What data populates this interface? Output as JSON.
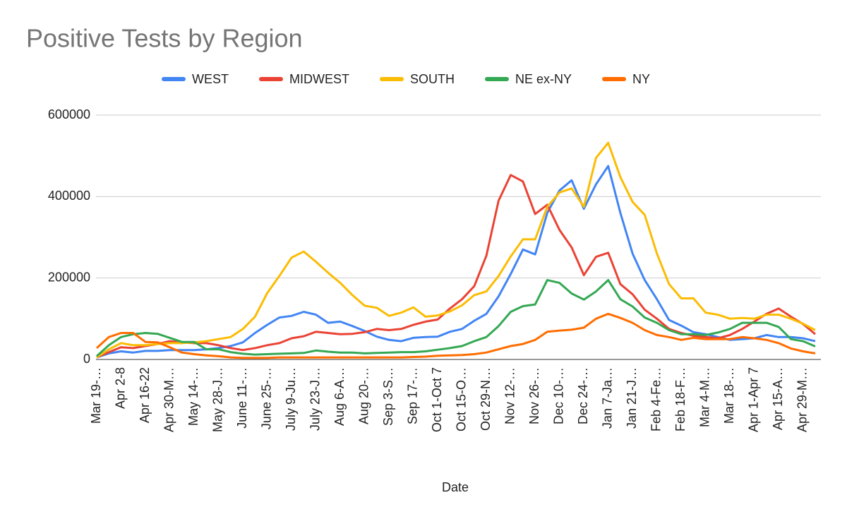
{
  "chart_data": {
    "type": "line",
    "title": "Positive Tests by Region",
    "x_label": "Date",
    "categories": [
      "Mar 19-…",
      null,
      "Apr 2-8",
      null,
      "Apr 16-22",
      null,
      "Apr 30-M…",
      null,
      "May 14-…",
      null,
      "May 28-J…",
      null,
      "June 11-…",
      null,
      "June 25-…",
      null,
      "July 9-Ju…",
      null,
      "July 23-J…",
      null,
      "Aug 6-A…",
      null,
      "Aug 20-…",
      null,
      "Sep 3-S…",
      null,
      "Sep 17-…",
      null,
      "Oct 1-Oct 7",
      null,
      "Oct 15-O…",
      null,
      "Oct 29-N…",
      null,
      "Nov 12-…",
      null,
      "Nov 26-…",
      null,
      "Dec 10-…",
      null,
      "Dec 24-…",
      null,
      "Jan 7-Ja…",
      null,
      "Jan 21-J…",
      null,
      "Feb 4-Fe…",
      null,
      "Feb 18-F…",
      null,
      "Mar 4-M…",
      null,
      "Mar 18-…",
      null,
      "Apr 1-Apr 7",
      null,
      "Apr 15-A…",
      null,
      "Apr 29-M…",
      null
    ],
    "series": [
      {
        "name": "WEST",
        "color": "#4285f4",
        "values": [
          5000,
          15000,
          20000,
          17000,
          21000,
          21000,
          23000,
          23000,
          23000,
          25000,
          28000,
          33000,
          42000,
          65000,
          85000,
          103000,
          107000,
          117000,
          110000,
          90000,
          93000,
          82000,
          70000,
          56000,
          48000,
          45000,
          53000,
          55000,
          56000,
          68000,
          75000,
          95000,
          112000,
          155000,
          210000,
          270000,
          258000,
          360000,
          415000,
          440000,
          370000,
          430000,
          475000,
          360000,
          260000,
          195000,
          148000,
          97000,
          83000,
          67000,
          62000,
          55000,
          48000,
          50000,
          52000,
          60000,
          55000,
          55000,
          52000,
          45000
        ]
      },
      {
        "name": "MIDWEST",
        "color": "#ea4335",
        "values": [
          5000,
          18000,
          30000,
          28000,
          33000,
          38000,
          45000,
          42000,
          40000,
          40000,
          35000,
          28000,
          23000,
          28000,
          35000,
          40000,
          52000,
          57000,
          68000,
          65000,
          62000,
          63000,
          67000,
          75000,
          72000,
          75000,
          85000,
          93000,
          98000,
          125000,
          148000,
          180000,
          255000,
          390000,
          453000,
          437000,
          357000,
          380000,
          318000,
          275000,
          207000,
          252000,
          262000,
          185000,
          160000,
          122000,
          100000,
          75000,
          65000,
          58000,
          55000,
          52000,
          60000,
          75000,
          93000,
          112000,
          125000,
          105000,
          87000,
          62000
        ]
      },
      {
        "name": "SOUTH",
        "color": "#fbbc04",
        "values": [
          5000,
          25000,
          40000,
          35000,
          35000,
          38000,
          40000,
          40000,
          42000,
          45000,
          50000,
          55000,
          75000,
          105000,
          163000,
          205000,
          250000,
          265000,
          240000,
          213000,
          188000,
          158000,
          132000,
          127000,
          107000,
          115000,
          128000,
          105000,
          108000,
          118000,
          133000,
          158000,
          167000,
          205000,
          253000,
          295000,
          295000,
          375000,
          410000,
          420000,
          375000,
          495000,
          532000,
          448000,
          387000,
          355000,
          260000,
          185000,
          150000,
          150000,
          115000,
          110000,
          100000,
          102000,
          100000,
          110000,
          110000,
          100000,
          88000,
          72000
        ]
      },
      {
        "name": "NE ex-NY",
        "color": "#34a853",
        "values": [
          8000,
          35000,
          55000,
          62000,
          65000,
          63000,
          53000,
          43000,
          43000,
          25000,
          25000,
          18000,
          14000,
          12000,
          13000,
          14000,
          15000,
          16000,
          22000,
          19000,
          17000,
          17000,
          15000,
          16000,
          17000,
          18000,
          18000,
          20000,
          24000,
          28000,
          33000,
          45000,
          55000,
          82000,
          117000,
          131000,
          135000,
          195000,
          188000,
          162000,
          147000,
          167000,
          195000,
          148000,
          130000,
          103000,
          90000,
          72000,
          62000,
          62000,
          60000,
          66000,
          75000,
          90000,
          90000,
          90000,
          80000,
          50000,
          45000,
          32000
        ]
      },
      {
        "name": "NY",
        "color": "#ff6d01",
        "values": [
          28000,
          55000,
          65000,
          65000,
          43000,
          42000,
          30000,
          17000,
          13000,
          10000,
          8000,
          5000,
          4000,
          4000,
          4000,
          5000,
          5000,
          5000,
          5000,
          5000,
          5000,
          5000,
          5000,
          5000,
          5000,
          5000,
          6000,
          7000,
          9000,
          10000,
          11000,
          13000,
          17000,
          25000,
          33000,
          38000,
          48000,
          68000,
          71000,
          73000,
          78000,
          100000,
          112000,
          102000,
          90000,
          72000,
          60000,
          55000,
          48000,
          53000,
          50000,
          50000,
          50000,
          55000,
          52000,
          48000,
          40000,
          27000,
          20000,
          15000
        ]
      }
    ],
    "ylim": [
      0,
      600000
    ],
    "yticks": [
      0,
      200000,
      400000,
      600000
    ],
    "grid": true,
    "legend": "top"
  }
}
